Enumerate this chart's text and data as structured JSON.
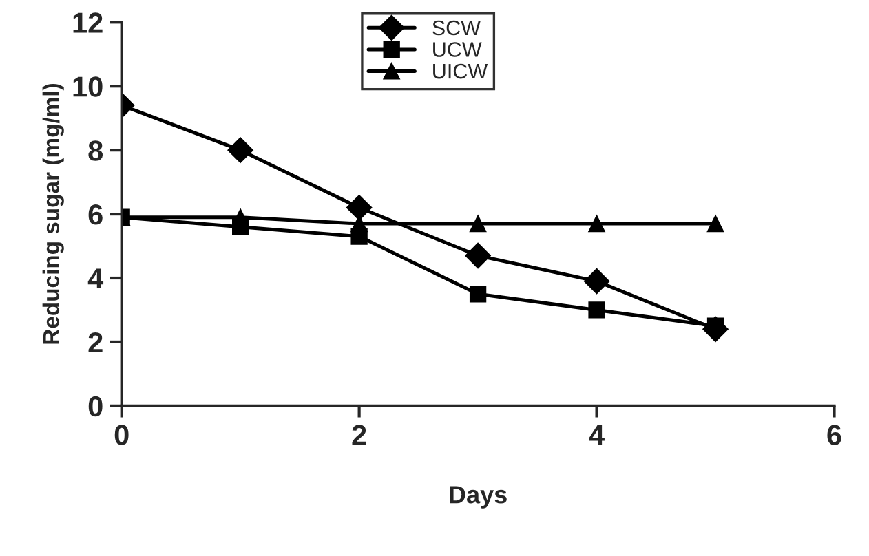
{
  "chart_data": {
    "type": "line",
    "xlabel": "Days",
    "ylabel": "Reducing sugar (mg/ml)",
    "x": [
      0,
      1,
      2,
      3,
      4,
      5
    ],
    "series": [
      {
        "name": "SCW",
        "color": "#000000",
        "marker": "diamond",
        "values": [
          9.4,
          8.0,
          6.2,
          4.7,
          3.9,
          2.4
        ]
      },
      {
        "name": "UCW",
        "color": "#000000",
        "marker": "square",
        "values": [
          5.9,
          5.6,
          5.3,
          3.5,
          3.0,
          2.5
        ]
      },
      {
        "name": "UICW",
        "color": "#000000",
        "marker": "triangle",
        "values": [
          5.9,
          5.9,
          5.7,
          5.7,
          5.7,
          5.7
        ]
      }
    ],
    "xlim": [
      0,
      6
    ],
    "xticks": [
      0,
      2,
      4,
      6
    ],
    "ylim": [
      0,
      12
    ],
    "yticks": [
      0,
      2,
      4,
      6,
      8,
      10,
      12
    ],
    "grid": false,
    "legend": "top",
    "line_style": "solid"
  }
}
